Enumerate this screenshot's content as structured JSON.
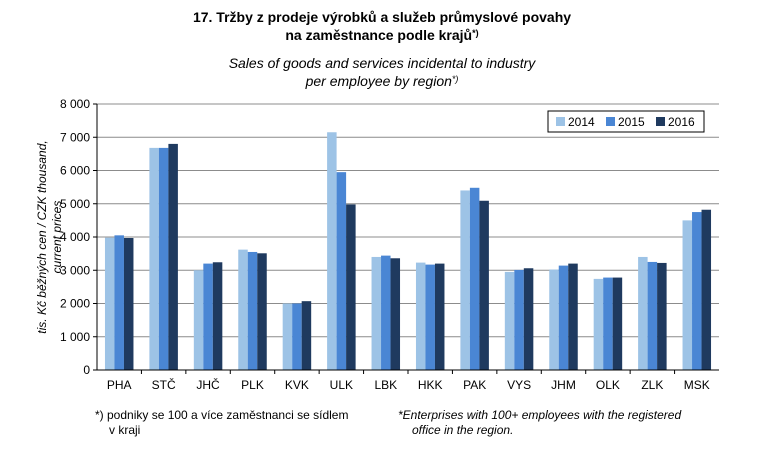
{
  "title": {
    "line1": "17. Tržby z prodeje výrobků a služeb průmyslové povahy",
    "line2_text": "na zaměstnance podle krajů",
    "line2_marker": "*)",
    "line3": "Sales of goods and services incidental to industry",
    "line4_text": "per employee  by region",
    "line4_marker": "*)"
  },
  "chart_data": {
    "type": "bar",
    "ylabel_line1": "tis. Kč běžných cen / CZK thousand,",
    "ylabel_line2": "current prices",
    "ylim": [
      0,
      8000
    ],
    "yticks": [
      0,
      1000,
      2000,
      3000,
      4000,
      5000,
      6000,
      7000,
      8000
    ],
    "ytick_labels": [
      "0",
      "1 000",
      "2 000",
      "3 000",
      "4 000",
      "5 000",
      "6 000",
      "7 000",
      "8 000"
    ],
    "categories": [
      "PHA",
      "STČ",
      "JHČ",
      "PLK",
      "KVK",
      "ULK",
      "LBK",
      "HKK",
      "PAK",
      "VYS",
      "JHM",
      "OLK",
      "ZLK",
      "MSK"
    ],
    "legend_position": "top-right",
    "series": [
      {
        "name": "2014",
        "color": "#9dc3e6",
        "values": [
          3980,
          6680,
          3000,
          3620,
          2000,
          7150,
          3400,
          3230,
          5400,
          2950,
          3020,
          2740,
          3400,
          4500
        ]
      },
      {
        "name": "2015",
        "color": "#4a86d4",
        "values": [
          4050,
          6680,
          3200,
          3550,
          2000,
          5950,
          3440,
          3170,
          5480,
          3010,
          3140,
          2780,
          3250,
          4750
        ]
      },
      {
        "name": "2016",
        "color": "#1f3a5f",
        "values": [
          3970,
          6800,
          3240,
          3510,
          2070,
          4980,
          3360,
          3200,
          5090,
          3060,
          3200,
          2780,
          3220,
          4820
        ]
      }
    ]
  },
  "footnotes": {
    "cz_line1": "*) podniky se 100 a více zaměstnanci se sídlem",
    "cz_line2": "v kraji",
    "en_line1": "*Enterprises with 100+ employees with the registered",
    "en_line2": "office in the region."
  }
}
